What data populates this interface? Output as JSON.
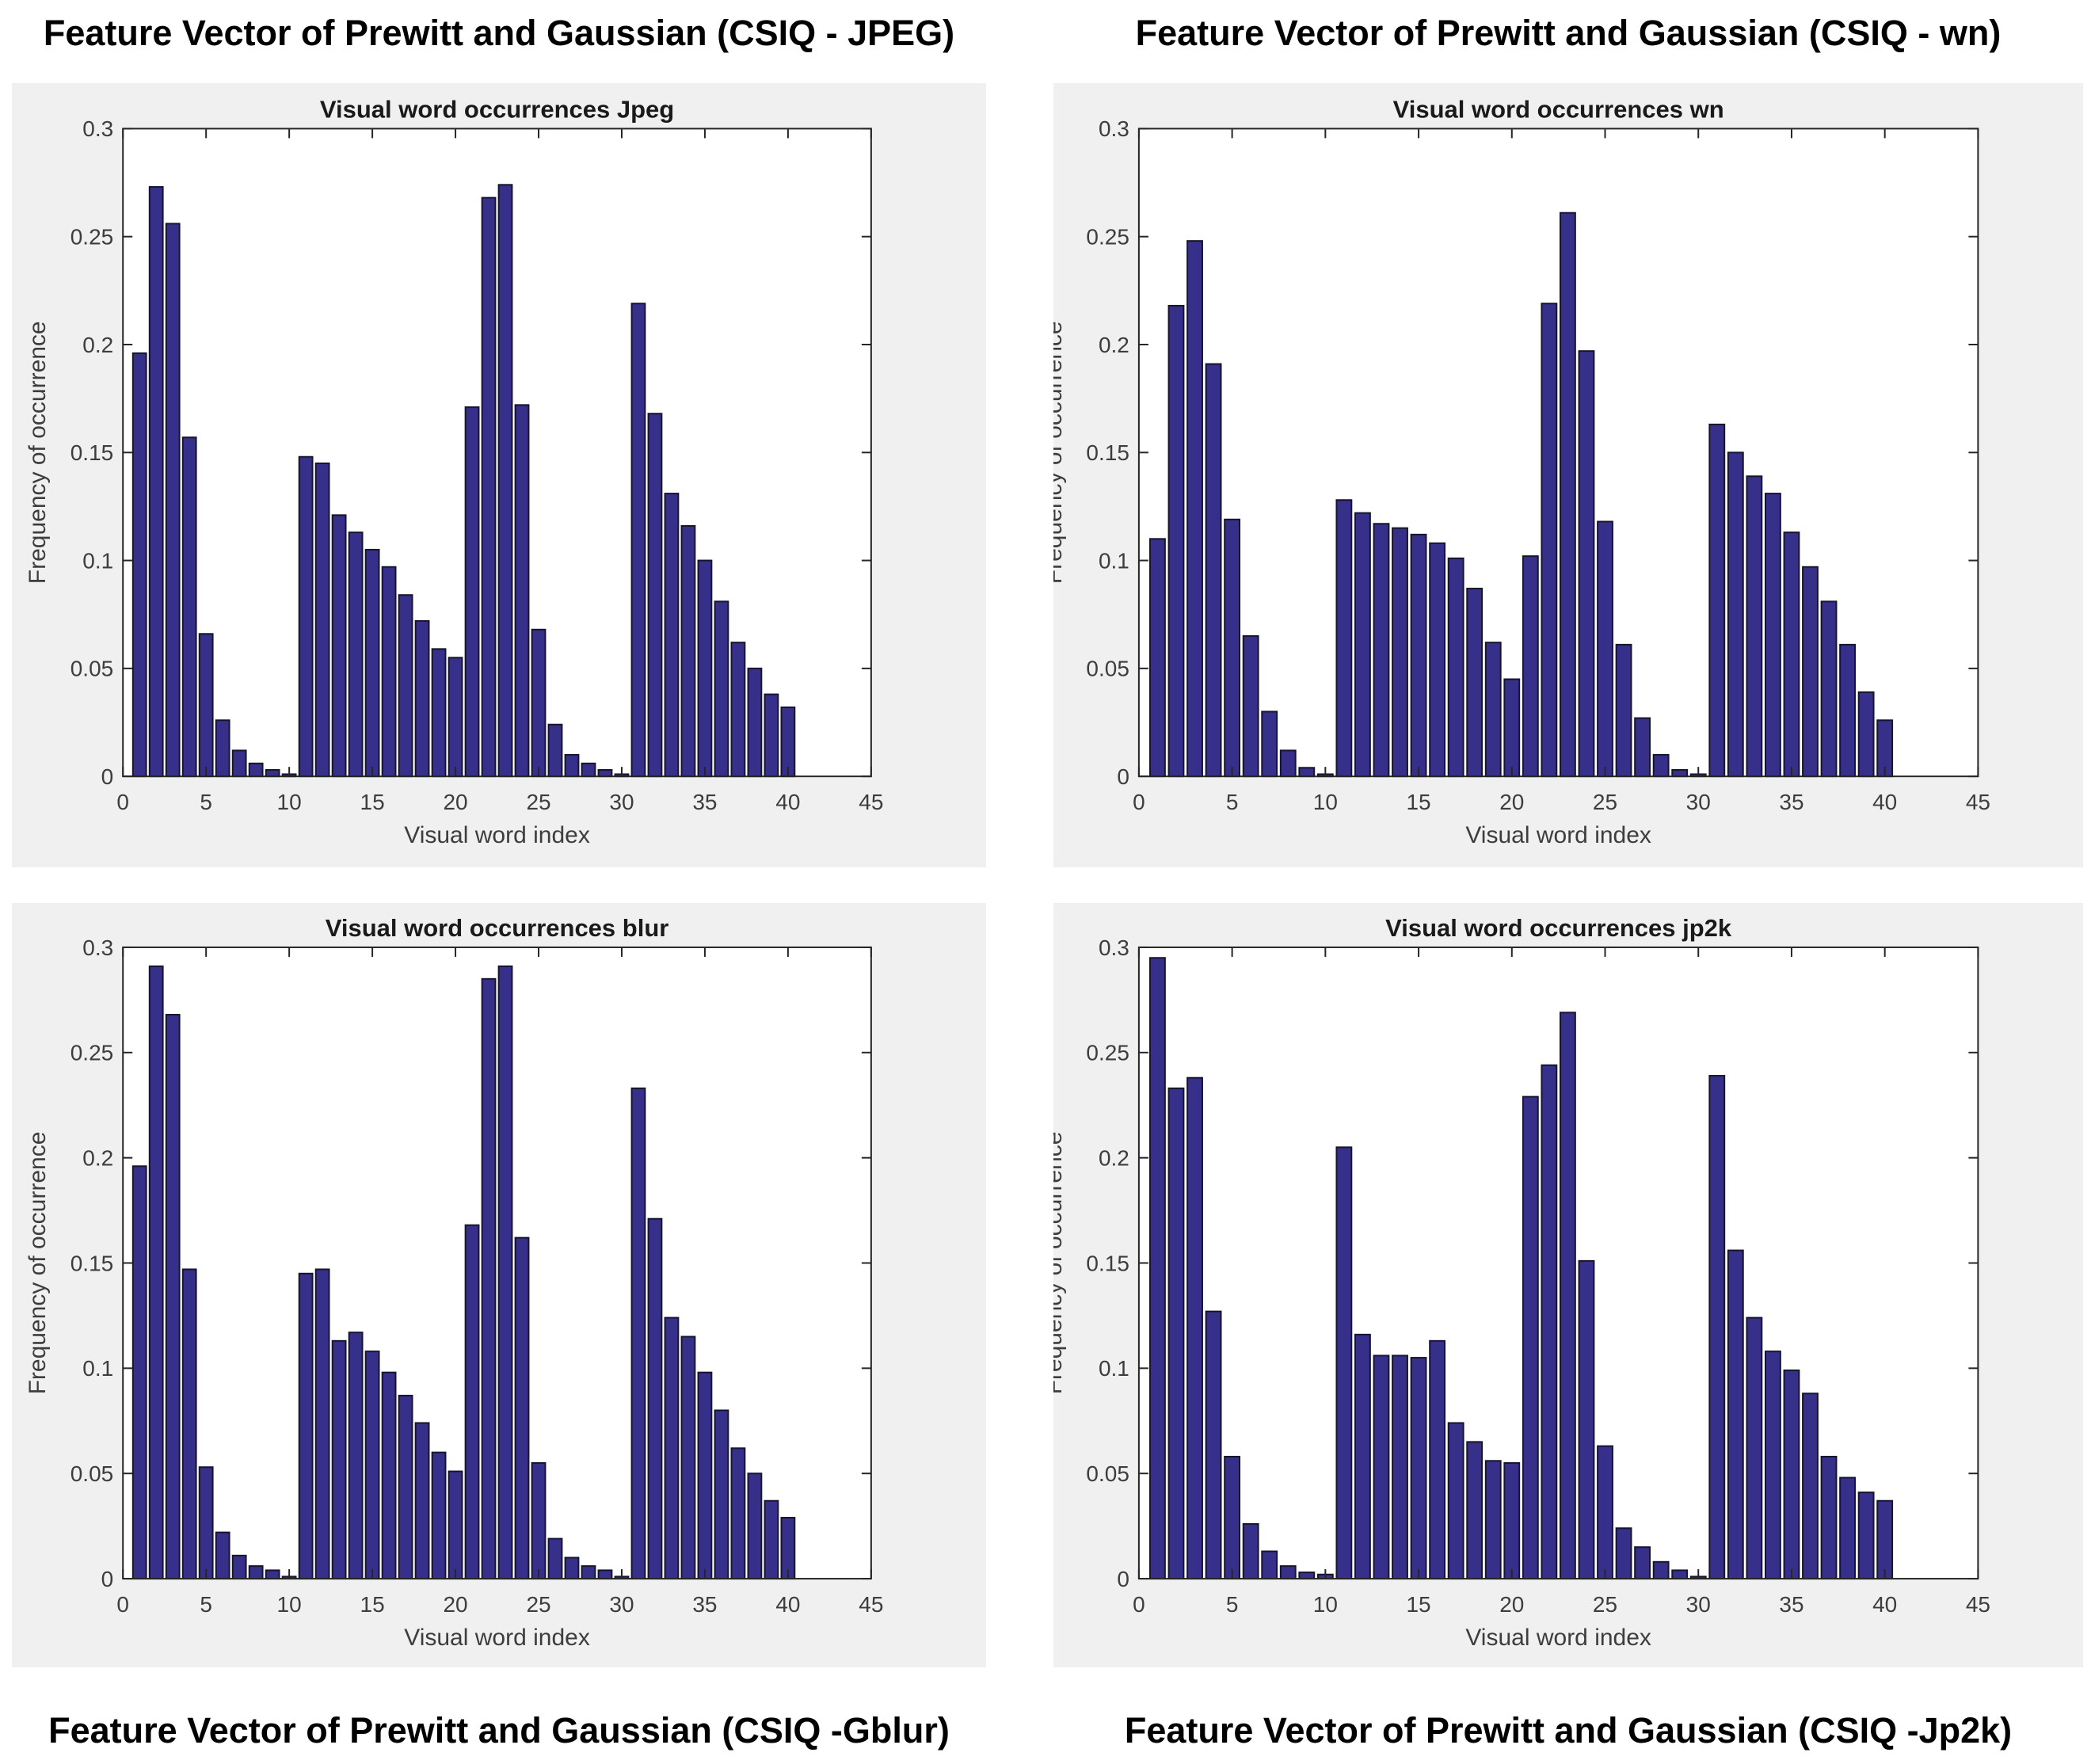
{
  "colors": {
    "panel_bg": "#f0f0f0",
    "plot_bg": "#ffffff",
    "bar_fill": "#36308a",
    "bar_edge": "#17152e",
    "axis": "#262626",
    "tick_label": "#3d3d3d",
    "title": "#1a1a1a",
    "figure_label": "#000000"
  },
  "chart_data": [
    {
      "type": "bar",
      "figure_label": "Feature Vector of Prewitt and Gaussian (CSIQ - JPEG)",
      "figure_label_position": "top",
      "title": "Visual word occurrences Jpeg",
      "xlabel": "Visual word index",
      "ylabel": "Frequency of occurrence",
      "xlim": [
        0,
        45
      ],
      "ylim": [
        0,
        0.3
      ],
      "xticks": [
        0,
        5,
        10,
        15,
        20,
        25,
        30,
        35,
        40,
        45
      ],
      "yticks": [
        0,
        0.05,
        0.1,
        0.15,
        0.2,
        0.25,
        0.3
      ],
      "ytick_labels": [
        "0",
        "0.05",
        "0.1",
        "0.15",
        "0.2",
        "0.25",
        "0.3"
      ],
      "grid": false,
      "legend": null,
      "categories": [
        1,
        2,
        3,
        4,
        5,
        6,
        7,
        8,
        9,
        10,
        11,
        12,
        13,
        14,
        15,
        16,
        17,
        18,
        19,
        20,
        21,
        22,
        23,
        24,
        25,
        26,
        27,
        28,
        29,
        30,
        31,
        32,
        33,
        34,
        35,
        36,
        37,
        38,
        39,
        40
      ],
      "values": [
        0.196,
        0.273,
        0.256,
        0.157,
        0.066,
        0.026,
        0.012,
        0.006,
        0.003,
        0.001,
        0.148,
        0.145,
        0.121,
        0.113,
        0.105,
        0.097,
        0.084,
        0.072,
        0.059,
        0.055,
        0.171,
        0.268,
        0.274,
        0.172,
        0.068,
        0.024,
        0.01,
        0.006,
        0.003,
        0.001,
        0.219,
        0.168,
        0.131,
        0.116,
        0.1,
        0.081,
        0.062,
        0.05,
        0.038,
        0.032
      ]
    },
    {
      "type": "bar",
      "figure_label": "Feature Vector of Prewitt and Gaussian (CSIQ - wn)",
      "figure_label_position": "top",
      "title": "Visual word occurrences wn",
      "xlabel": "Visual word index",
      "ylabel": "Frequency of occurrence",
      "xlim": [
        0,
        45
      ],
      "ylim": [
        0,
        0.3
      ],
      "xticks": [
        0,
        5,
        10,
        15,
        20,
        25,
        30,
        35,
        40,
        45
      ],
      "yticks": [
        0,
        0.05,
        0.1,
        0.15,
        0.2,
        0.25,
        0.3
      ],
      "ytick_labels": [
        "0",
        "0.05",
        "0.1",
        "0.15",
        "0.2",
        "0.25",
        "0.3"
      ],
      "grid": false,
      "legend": null,
      "categories": [
        1,
        2,
        3,
        4,
        5,
        6,
        7,
        8,
        9,
        10,
        11,
        12,
        13,
        14,
        15,
        16,
        17,
        18,
        19,
        20,
        21,
        22,
        23,
        24,
        25,
        26,
        27,
        28,
        29,
        30,
        31,
        32,
        33,
        34,
        35,
        36,
        37,
        38,
        39,
        40
      ],
      "values": [
        0.11,
        0.218,
        0.248,
        0.191,
        0.119,
        0.065,
        0.03,
        0.012,
        0.004,
        0.001,
        0.128,
        0.122,
        0.117,
        0.115,
        0.112,
        0.108,
        0.101,
        0.087,
        0.062,
        0.045,
        0.102,
        0.219,
        0.261,
        0.197,
        0.118,
        0.061,
        0.027,
        0.01,
        0.003,
        0.001,
        0.163,
        0.15,
        0.139,
        0.131,
        0.113,
        0.097,
        0.081,
        0.061,
        0.039,
        0.026
      ]
    },
    {
      "type": "bar",
      "figure_label": "Feature Vector of Prewitt and Gaussian (CSIQ -Gblur)",
      "figure_label_position": "bottom",
      "title": "Visual word occurrences blur",
      "xlabel": "Visual word index",
      "ylabel": "Frequency of occurrence",
      "xlim": [
        0,
        45
      ],
      "ylim": [
        0,
        0.3
      ],
      "xticks": [
        0,
        5,
        10,
        15,
        20,
        25,
        30,
        35,
        40,
        45
      ],
      "yticks": [
        0,
        0.05,
        0.1,
        0.15,
        0.2,
        0.25,
        0.3
      ],
      "ytick_labels": [
        "0",
        "0.05",
        "0.1",
        "0.15",
        "0.2",
        "0.25",
        "0.3"
      ],
      "grid": false,
      "legend": null,
      "categories": [
        1,
        2,
        3,
        4,
        5,
        6,
        7,
        8,
        9,
        10,
        11,
        12,
        13,
        14,
        15,
        16,
        17,
        18,
        19,
        20,
        21,
        22,
        23,
        24,
        25,
        26,
        27,
        28,
        29,
        30,
        31,
        32,
        33,
        34,
        35,
        36,
        37,
        38,
        39,
        40
      ],
      "values": [
        0.196,
        0.291,
        0.268,
        0.147,
        0.053,
        0.022,
        0.011,
        0.006,
        0.004,
        0.001,
        0.145,
        0.147,
        0.113,
        0.117,
        0.108,
        0.098,
        0.087,
        0.074,
        0.06,
        0.051,
        0.168,
        0.285,
        0.291,
        0.162,
        0.055,
        0.019,
        0.01,
        0.006,
        0.004,
        0.001,
        0.233,
        0.171,
        0.124,
        0.115,
        0.098,
        0.08,
        0.062,
        0.05,
        0.037,
        0.029
      ]
    },
    {
      "type": "bar",
      "figure_label": "Feature Vector of Prewitt and Gaussian (CSIQ -Jp2k)",
      "figure_label_position": "bottom",
      "title": "Visual word occurrences jp2k",
      "xlabel": "Visual word index",
      "ylabel": "Frequency of occurrence",
      "xlim": [
        0,
        45
      ],
      "ylim": [
        0,
        0.3
      ],
      "xticks": [
        0,
        5,
        10,
        15,
        20,
        25,
        30,
        35,
        40,
        45
      ],
      "yticks": [
        0,
        0.05,
        0.1,
        0.15,
        0.2,
        0.25,
        0.3
      ],
      "ytick_labels": [
        "0",
        "0.05",
        "0.1",
        "0.15",
        "0.2",
        "0.25",
        "0.3"
      ],
      "grid": false,
      "legend": null,
      "categories": [
        1,
        2,
        3,
        4,
        5,
        6,
        7,
        8,
        9,
        10,
        11,
        12,
        13,
        14,
        15,
        16,
        17,
        18,
        19,
        20,
        21,
        22,
        23,
        24,
        25,
        26,
        27,
        28,
        29,
        30,
        31,
        32,
        33,
        34,
        35,
        36,
        37,
        38,
        39,
        40
      ],
      "values": [
        0.295,
        0.233,
        0.238,
        0.127,
        0.058,
        0.026,
        0.013,
        0.006,
        0.003,
        0.002,
        0.205,
        0.116,
        0.106,
        0.106,
        0.105,
        0.113,
        0.074,
        0.065,
        0.056,
        0.055,
        0.229,
        0.244,
        0.269,
        0.151,
        0.063,
        0.024,
        0.015,
        0.008,
        0.004,
        0.001,
        0.239,
        0.156,
        0.124,
        0.108,
        0.099,
        0.088,
        0.058,
        0.048,
        0.041,
        0.037
      ]
    }
  ]
}
